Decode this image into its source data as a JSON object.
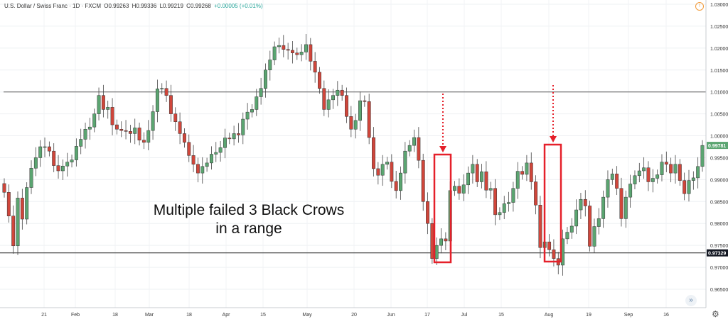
{
  "header": {
    "symbol": "U.S. Dollar / Swiss Franc · 1D · FXCM",
    "open": "O0.99263",
    "high": "H0.99336",
    "low": "L0.99219",
    "close": "C0.99268",
    "change": "+0.00005 (+0.01%)"
  },
  "annotation": {
    "line1": "Multiple failed 3 Black Crows",
    "line2": "in a range"
  },
  "price_tags": {
    "current": "0.99781",
    "level": "0.97329"
  },
  "colors": {
    "bull": "#5ba571",
    "bear": "#d0463b",
    "box": "#e5202a",
    "tag_current": "#5ba571",
    "tag_level": "#131722"
  },
  "icons": {
    "info": "info-icon",
    "nav": "double-chevron-right-icon",
    "settings": "gear-icon"
  },
  "chart_data": {
    "type": "candlestick",
    "ylim": [
      0.961,
      1.03
    ],
    "y_ticks": [
      "1.03000",
      "1.02500",
      "1.02000",
      "1.01500",
      "1.01000",
      "1.00500",
      "1.00000",
      "0.99500",
      "0.99000",
      "0.98500",
      "0.98000",
      "0.97500",
      "0.97000",
      "0.96500"
    ],
    "x_ticks": [
      "21",
      "Feb",
      "18",
      "Mar",
      "18",
      "Apr",
      "15",
      "May",
      "20",
      "Jun",
      "17",
      "Jul",
      "15",
      "Aug",
      "19",
      "Sep",
      "16"
    ],
    "horizontal_lines": [
      1.01,
      0.97329
    ],
    "candles_close": [
      0.9871,
      0.9817,
      0.9749,
      0.9858,
      0.981,
      0.9882,
      0.9926,
      0.995,
      0.9975,
      0.9975,
      0.9965,
      0.9932,
      0.992,
      0.9931,
      0.994,
      0.9945,
      0.9976,
      0.9992,
      1.0015,
      1.002,
      1.005,
      1.0092,
      1.006,
      1.0065,
      1.0025,
      1.0015,
      1.0012,
      1.001,
      1.0005,
      1.0018,
      0.999,
      0.9985,
      1.0012,
      1.0055,
      1.0107,
      1.0108,
      1.0092,
      1.005,
      1.0032,
      1.0005,
      0.9985,
      0.9955,
      0.9935,
      0.9915,
      0.993,
      0.9938,
      0.9958,
      0.9962,
      0.9973,
      0.9995,
      0.9993,
      1.0005,
      1.0002,
      1.0038,
      1.0054,
      1.006,
      1.0089,
      1.0108,
      1.015,
      1.0173,
      1.0203,
      1.0206,
      1.0197,
      1.0195,
      1.0189,
      1.0185,
      1.0191,
      1.0208,
      1.017,
      1.0145,
      1.0108,
      1.006,
      1.0082,
      1.0092,
      1.0104,
      1.0092,
      1.0044,
      1.0015,
      1.0035,
      1.008,
      1.0078,
      0.9996,
      0.9925,
      0.991,
      0.9935,
      0.994,
      0.9896,
      0.9875,
      0.9915,
      0.9965,
      0.9978,
      0.9996,
      0.9944,
      0.985,
      0.98,
      0.972,
      0.975,
      0.9765,
      0.976,
      0.9875,
      0.9885,
      0.9869,
      0.9888,
      0.9915,
      0.9935,
      0.9895,
      0.9918,
      0.9876,
      0.988,
      0.982,
      0.9825,
      0.9845,
      0.9848,
      0.988,
      0.9919,
      0.9912,
      0.9938,
      0.9895,
      0.9842,
      0.9745,
      0.9758,
      0.974,
      0.972,
      0.9705,
      0.9765,
      0.978,
      0.9794,
      0.9831,
      0.9855,
      0.984,
      0.9748,
      0.9793,
      0.9811,
      0.986,
      0.99,
      0.9913,
      0.988,
      0.9811,
      0.986,
      0.989,
      0.9909,
      0.992,
      0.9927,
      0.9895,
      0.9903,
      0.9911,
      0.994,
      0.9935,
      0.9915,
      0.9935,
      0.9898,
      0.9868,
      0.9898,
      0.9904,
      0.993,
      0.9978
    ]
  }
}
